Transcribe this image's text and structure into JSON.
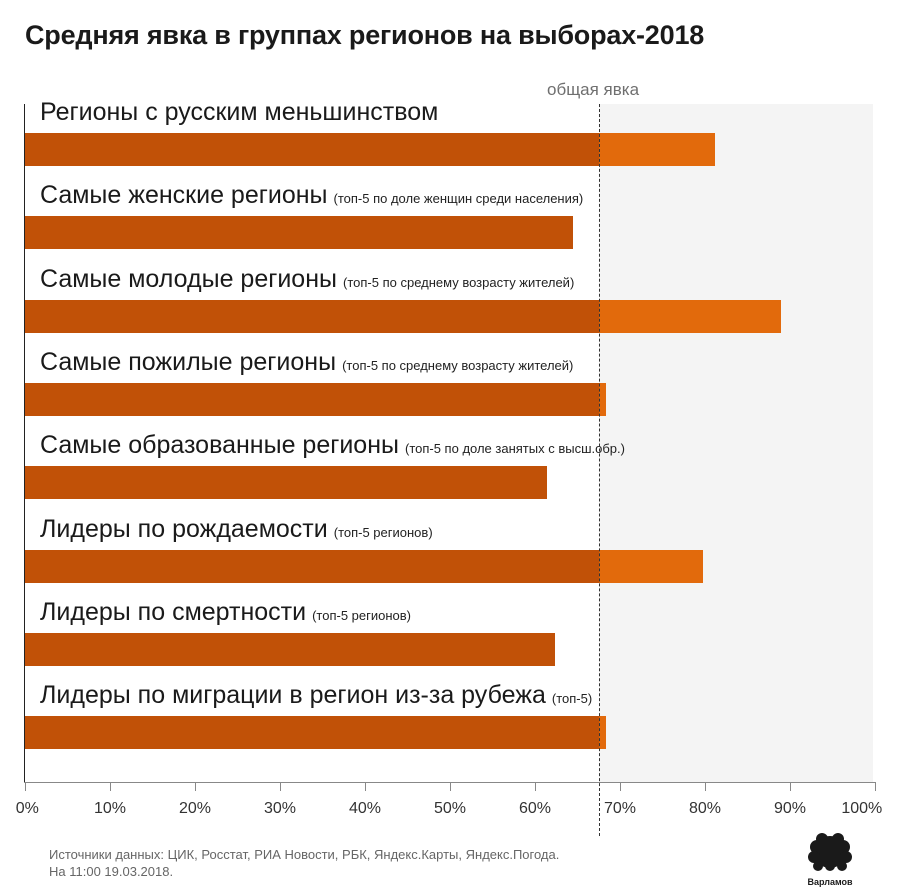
{
  "title": "Средняя явка в группах регионов на выборах-2018",
  "chart_data": {
    "type": "bar",
    "orientation": "horizontal",
    "title": "Средняя явка в группах регионов на выборах-2018",
    "reference": {
      "label": "общая явка",
      "value": 67.5
    },
    "xlim": [
      0,
      100
    ],
    "xticks": [
      "0%",
      "10%",
      "20%",
      "30%",
      "40%",
      "50%",
      "60%",
      "70%",
      "80%",
      "90%",
      "100%"
    ],
    "categories": [
      {
        "label": "Регионы с русским меньшинством",
        "note": "",
        "value": 81.2
      },
      {
        "label": "Самые женские регионы",
        "note": "(топ-5 по доле женщин среди населения)",
        "value": 64.5
      },
      {
        "label": "Самые молодые регионы",
        "note": "(топ-5 по среднему возрасту жителей)",
        "value": 88.9
      },
      {
        "label": "Самые пожилые регионы",
        "note": "(топ-5 по среднему возрасту жителей)",
        "value": 68.4
      },
      {
        "label": "Самые образованные регионы",
        "note": "(топ-5 по доле занятых с высш.обр.)",
        "value": 61.4
      },
      {
        "label": "Лидеры по рождаемости",
        "note": "(топ-5 регионов)",
        "value": 79.8
      },
      {
        "label": "Лидеры по смертности",
        "note": "(топ-5 регионов)",
        "value": 62.3
      },
      {
        "label": "Лидеры по миграции в регион из-за рубежа",
        "note": "(топ-5)",
        "value": 68.3
      }
    ],
    "colors": {
      "below_reference": "#c15107",
      "above_reference": "#e26a0c",
      "shade": "#f4f4f4"
    }
  },
  "source": {
    "line1": "Источники данных: ЦИК, Росстат, РИА Новости, РБК, Яндекс.Карты, Яндекс.Погода.",
    "line2": "На 11:00 19.03.2018."
  },
  "logo": {
    "text": "Варламов"
  }
}
